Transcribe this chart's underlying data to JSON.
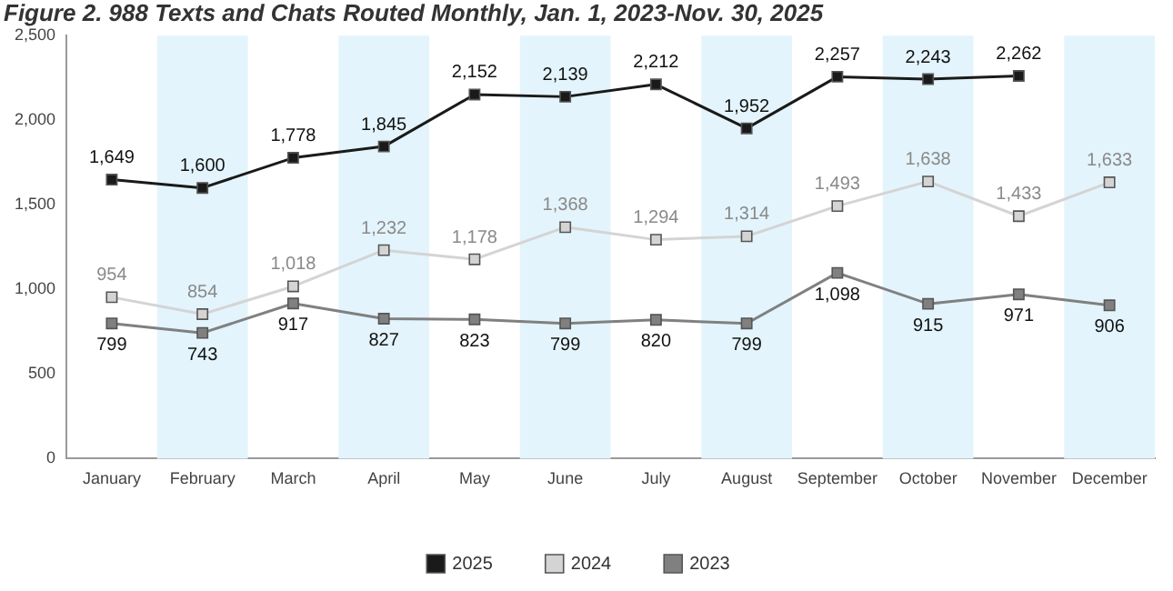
{
  "chart_data": {
    "type": "line",
    "title": "Figure 2. 988 Texts and Chats Routed Monthly, Jan. 1, 2023-Nov. 30, 2025",
    "categories": [
      "January",
      "February",
      "March",
      "April",
      "May",
      "June",
      "July",
      "August",
      "September",
      "October",
      "November",
      "December"
    ],
    "series": [
      {
        "name": "2025",
        "color": "#1a1a1a",
        "values": [
          1649,
          1600,
          1778,
          1845,
          2152,
          2139,
          2212,
          1952,
          2257,
          2243,
          2262,
          null
        ],
        "value_labels": [
          "1,649",
          "1,600",
          "1,778",
          "1,845",
          "2,152",
          "2,139",
          "2,212",
          "1,952",
          "2,257",
          "2,243",
          "2,262",
          null
        ]
      },
      {
        "name": "2024",
        "color": "#d4d4d4",
        "values": [
          954,
          854,
          1018,
          1232,
          1178,
          1368,
          1294,
          1314,
          1493,
          1638,
          1433,
          1633
        ],
        "value_labels": [
          "954",
          "854",
          "1,018",
          "1,232",
          "1,178",
          "1,368",
          "1,294",
          "1,314",
          "1,493",
          "1,638",
          "1,433",
          "1,633"
        ]
      },
      {
        "name": "2023",
        "color": "#808080",
        "values": [
          799,
          743,
          917,
          827,
          823,
          799,
          820,
          799,
          1098,
          915,
          971,
          906
        ],
        "value_labels": [
          "799",
          "743",
          "917",
          "827",
          "823",
          "799",
          "820",
          "799",
          "1,098",
          "915",
          "971",
          "906"
        ]
      }
    ],
    "ylim": [
      0,
      2500
    ],
    "yticks": [
      0,
      500,
      {
        "value": 1000,
        "label": "1,000"
      },
      {
        "value": 1500,
        "label": "1,500"
      },
      {
        "value": 2000,
        "label": "2,000"
      },
      {
        "value": 2500,
        "label": "2,500"
      }
    ],
    "bands": [
      {
        "axis": "x",
        "from": "February",
        "to": "February",
        "color": "#e3f4fc"
      },
      {
        "axis": "x",
        "from": "April",
        "to": "April",
        "color": "#e3f4fc"
      },
      {
        "axis": "x",
        "from": "June",
        "to": "June",
        "color": "#e3f4fc"
      },
      {
        "axis": "x",
        "from": "August",
        "to": "August",
        "color": "#e3f4fc"
      },
      {
        "axis": "x",
        "from": "October",
        "to": "October",
        "color": "#e3f4fc"
      },
      {
        "axis": "x",
        "from": "December",
        "to": "December",
        "color": "#e3f4fc"
      }
    ],
    "grid": false,
    "legend": "bottom",
    "marker": "square",
    "line_style": "solid"
  }
}
